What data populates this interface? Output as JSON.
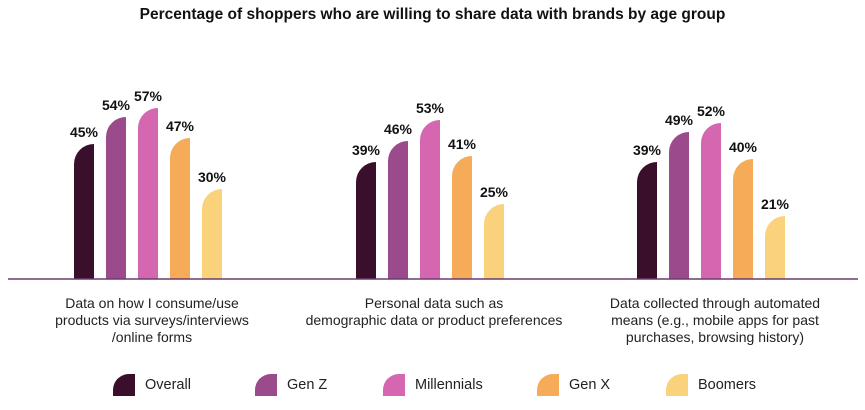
{
  "chart_data": {
    "type": "bar",
    "title": "Percentage of shoppers who are willing to share data with brands by age group",
    "categories": [
      [
        "Data on how I consume/use",
        "products via surveys/interviews",
        "/online forms"
      ],
      [
        "Personal data such as",
        "demographic data or product preferences"
      ],
      [
        "Data collected through automated",
        "means (e.g., mobile apps for past",
        "purchases, browsing history)"
      ]
    ],
    "series": [
      {
        "name": "Overall",
        "color": "#3a0f2c",
        "values": [
          45,
          39,
          39
        ]
      },
      {
        "name": "Gen Z",
        "color": "#9b4a8c",
        "values": [
          54,
          46,
          49
        ]
      },
      {
        "name": "Millennials",
        "color": "#d567b0",
        "values": [
          57,
          53,
          52
        ]
      },
      {
        "name": "Gen X",
        "color": "#f6ab58",
        "values": [
          47,
          41,
          40
        ]
      },
      {
        "name": "Boomers",
        "color": "#fbd27c",
        "values": [
          30,
          25,
          21
        ]
      }
    ],
    "value_suffix": "%",
    "ylim": [
      0,
      60
    ],
    "xlabel": "",
    "ylabel": "",
    "legend": "bottom",
    "axis_color": "#6b3a6e"
  }
}
